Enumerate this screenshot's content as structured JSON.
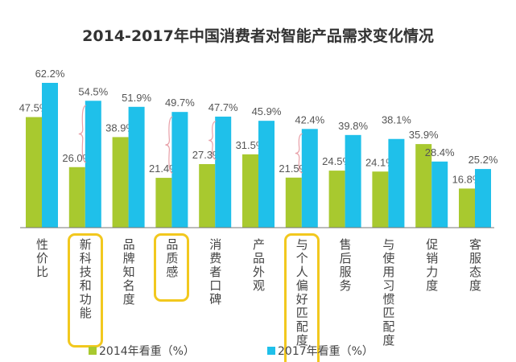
{
  "chart_data": {
    "type": "bar",
    "title": "2014-2017年中国消费者对智能产品需求变化情况",
    "categories": [
      "性价比",
      "新科技和功能",
      "品牌知名度",
      "品质感",
      "消费者口碑",
      "产品外观",
      "与个人偏好匹配度",
      "售后服务",
      "与使用习惯匹配度",
      "促销力度",
      "客服态度"
    ],
    "series": [
      {
        "name": "2014年看重（%）",
        "color": "#a8c92f",
        "values": [
          47.5,
          26.0,
          38.9,
          21.4,
          27.3,
          31.5,
          21.5,
          24.5,
          24.1,
          35.9,
          16.8
        ]
      },
      {
        "name": "2017年看重（%）",
        "color": "#1fc0ea",
        "values": [
          62.2,
          54.5,
          51.9,
          49.7,
          47.7,
          45.9,
          42.4,
          39.8,
          38.1,
          28.4,
          25.2
        ]
      }
    ],
    "value_format": "%",
    "highlighted_categories": [
      "新科技和功能",
      "品质感",
      "与个人偏好匹配度"
    ],
    "brace_categories": [
      "新科技和功能",
      "品质感",
      "消费者口碑",
      "与个人偏好匹配度"
    ],
    "highlight_color": "#f2c81e",
    "brace_color": "#e8a0a8",
    "ylim": [
      0,
      65
    ],
    "grid": false,
    "legend_position": "bottom"
  }
}
